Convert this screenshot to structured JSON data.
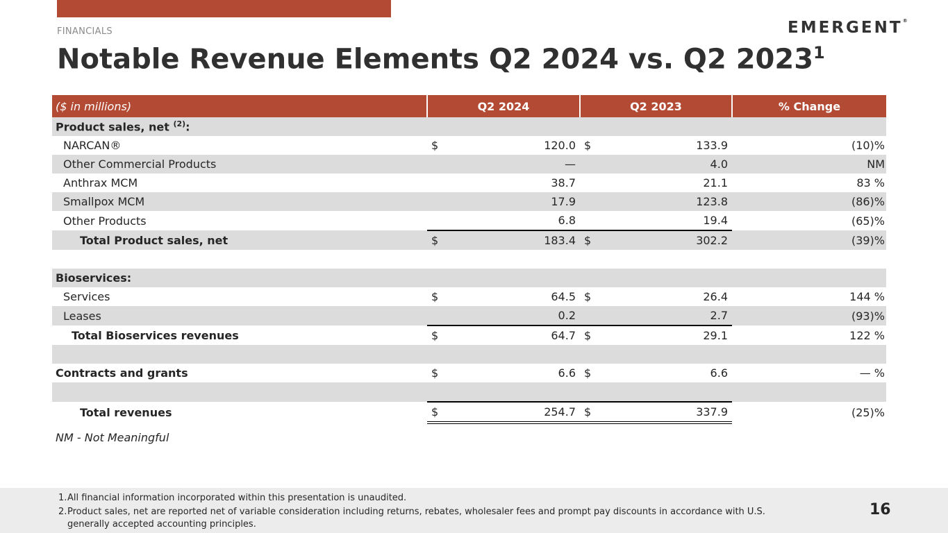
{
  "header": {
    "section_label": "FINANCIALS",
    "logo_text": "EMERGENT",
    "logo_mark": "®",
    "title": "Notable Revenue Elements Q2 2024 vs. Q2 2023",
    "title_superscript": "1"
  },
  "colors": {
    "accent": "#b24a34",
    "row_shade": "#dcdcdc",
    "footer_bg": "#ececec"
  },
  "table": {
    "headers": [
      "($ in millions)",
      "Q2 2024",
      "Q2 2023",
      "% Change"
    ],
    "rows": [
      {
        "label": "Product sales, net ",
        "label_sup": "(2)",
        "label_suffix": ":",
        "q2_2024_dollar": "",
        "q2_2024": "",
        "q2_2023_dollar": "",
        "q2_2023": "",
        "change": ""
      },
      {
        "label": "NARCAN®",
        "q2_2024_dollar": "$",
        "q2_2024": "120.0",
        "q2_2023_dollar": "$",
        "q2_2023": "133.9",
        "change": "(10)%"
      },
      {
        "label": "Other Commercial Products",
        "q2_2024_dollar": "",
        "q2_2024": "—",
        "q2_2023_dollar": "",
        "q2_2023": "4.0",
        "change": "NM"
      },
      {
        "label": "Anthrax MCM",
        "q2_2024_dollar": "",
        "q2_2024": "38.7",
        "q2_2023_dollar": "",
        "q2_2023": "21.1",
        "change": "83 %"
      },
      {
        "label": "Smallpox MCM",
        "q2_2024_dollar": "",
        "q2_2024": "17.9",
        "q2_2023_dollar": "",
        "q2_2023": "123.8",
        "change": "(86)%"
      },
      {
        "label": "Other Products",
        "q2_2024_dollar": "",
        "q2_2024": "6.8",
        "q2_2023_dollar": "",
        "q2_2023": "19.4",
        "change": "(65)%"
      },
      {
        "label": "Total Product sales, net",
        "q2_2024_dollar": "$",
        "q2_2024": "183.4",
        "q2_2023_dollar": "$",
        "q2_2023": "302.2",
        "change": "(39)%"
      },
      {
        "label": "",
        "q2_2024_dollar": "",
        "q2_2024": "",
        "q2_2023_dollar": "",
        "q2_2023": "",
        "change": ""
      },
      {
        "label": "Bioservices:",
        "q2_2024_dollar": "",
        "q2_2024": "",
        "q2_2023_dollar": "",
        "q2_2023": "",
        "change": ""
      },
      {
        "label": "Services",
        "q2_2024_dollar": "$",
        "q2_2024": "64.5",
        "q2_2023_dollar": "$",
        "q2_2023": "26.4",
        "change": "144 %"
      },
      {
        "label": "Leases",
        "q2_2024_dollar": "",
        "q2_2024": "0.2",
        "q2_2023_dollar": "",
        "q2_2023": "2.7",
        "change": "(93)%"
      },
      {
        "label": "Total Bioservices revenues",
        "q2_2024_dollar": "$",
        "q2_2024": "64.7",
        "q2_2023_dollar": "$",
        "q2_2023": "29.1",
        "change": "122 %"
      },
      {
        "label": "",
        "q2_2024_dollar": "",
        "q2_2024": "",
        "q2_2023_dollar": "",
        "q2_2023": "",
        "change": ""
      },
      {
        "label": "Contracts and grants",
        "q2_2024_dollar": "$",
        "q2_2024": "6.6",
        "q2_2023_dollar": "$",
        "q2_2023": "6.6",
        "change": "— %"
      },
      {
        "label": "",
        "q2_2024_dollar": "",
        "q2_2024": "",
        "q2_2023_dollar": "",
        "q2_2023": "",
        "change": ""
      },
      {
        "label": "Total revenues",
        "q2_2024_dollar": "$",
        "q2_2024": "254.7",
        "q2_2023_dollar": "$",
        "q2_2023": "337.9",
        "change": "(25)%"
      }
    ]
  },
  "nm_note": "NM - Not Meaningful",
  "footnotes": [
    {
      "num": "1.",
      "text": "All financial information incorporated within this presentation is unaudited."
    },
    {
      "num": "2.",
      "text": "Product sales, net are reported net of variable consideration including returns, rebates, wholesaler fees and prompt pay discounts in accordance with U.S. generally accepted accounting principles."
    }
  ],
  "page_number": "16"
}
